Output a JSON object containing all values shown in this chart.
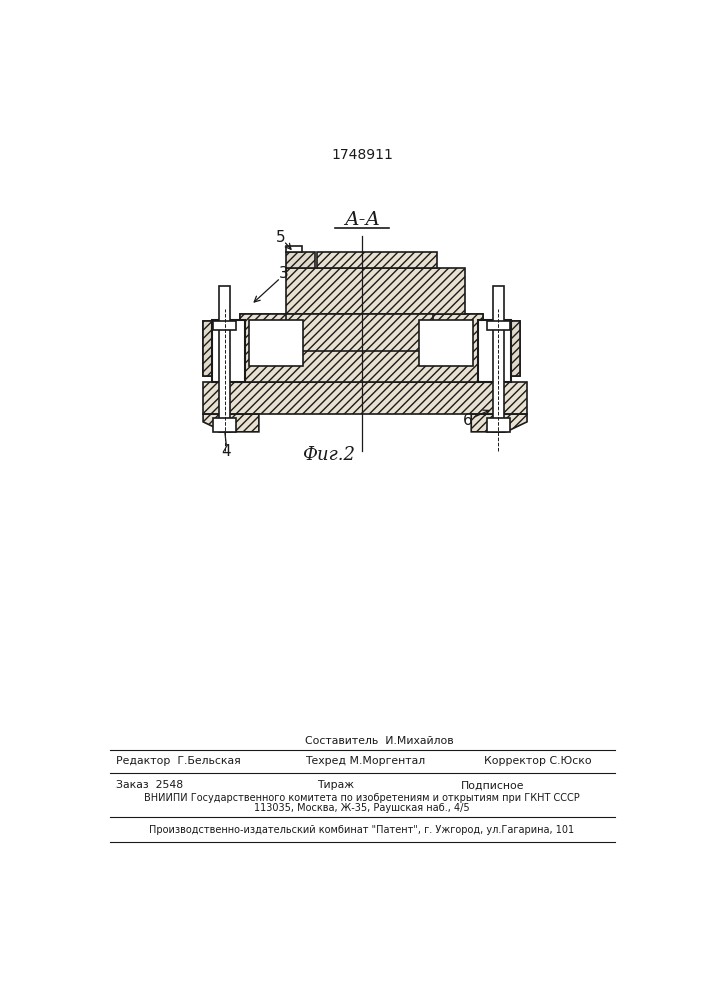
{
  "patent_number": "1748911",
  "section_label": "А-А",
  "fig_label": "Фиг.2",
  "bg_color": "#ffffff",
  "line_color": "#1a1a1a",
  "hatch_color": "#444444",
  "footer": {
    "line1_mid_top": "Составитель  И.Михайлов",
    "line1_left": "Редактор  Г.Бельская",
    "line1_mid_bot": "Техред М.Моргентал",
    "line1_right": "Корректор С.Юско",
    "line2_left": "Заказ  2548",
    "line2_mid": "Тираж",
    "line2_right": "Подписное",
    "line3": "ВНИИПИ Государственного комитета по изобретениям и открытиям при ГКНТ СССР",
    "line4": "113035, Москва, Ж-35, Раушская наб., 4/5",
    "line5": "Производственно-издательский комбинат \"Патент\", г. Ужгород, ул.Гагарина, 101"
  }
}
